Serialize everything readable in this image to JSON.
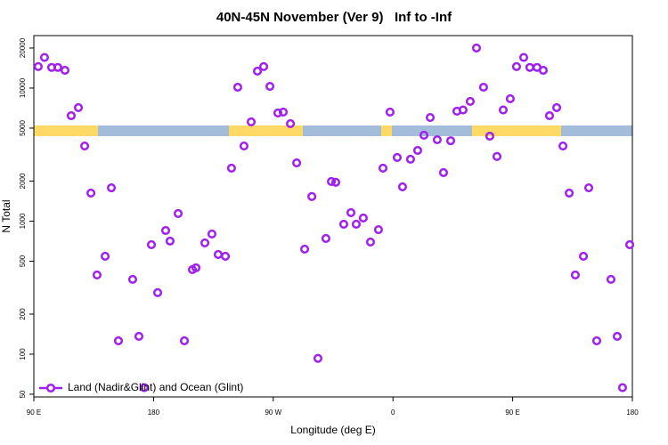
{
  "chart_data": {
    "type": "scatter",
    "log_y": true,
    "title": "40N-45N November (Ver 9)   Inf to -Inf",
    "xlabel": "Longitude (deg E)",
    "ylabel": "N Total",
    "xlim": [
      90,
      540
    ],
    "ylim": [
      47.7,
      24800
    ],
    "xticks": [
      {
        "value": 90,
        "label": "90 E"
      },
      180,
      {
        "value": 270,
        "label": "90 W"
      },
      {
        "value": 360,
        "label": "0"
      },
      {
        "value": 450,
        "label": "90 E"
      },
      {
        "value": 540,
        "label": "180"
      }
    ],
    "yticks": [
      50,
      100,
      200,
      500,
      1000,
      2000,
      5000,
      10000,
      20000
    ],
    "legend": "bottom-left",
    "series": [
      {
        "name": "Land (Nadir&Glint) and Ocean (Glint)",
        "color": "#a020f0",
        "x": [
          93.3,
          98,
          103.4,
          108,
          113.4,
          118.1,
          123.5,
          128.2,
          132.9,
          137.5,
          143.6,
          148.3,
          153.6,
          164.3,
          169,
          173,
          178.4,
          183.1,
          189.1,
          192.4,
          198.5,
          203.2,
          209.2,
          211.9,
          218.6,
          223.9,
          228.6,
          234,
          238.6,
          243.3,
          248,
          253.4,
          258.1,
          262.8,
          267.5,
          273.5,
          277.5,
          282.9,
          287.6,
          293.6,
          299,
          303.6,
          309.6,
          313.7,
          317,
          323,
          328.4,
          332.4,
          337.7,
          343.1,
          349.1,
          352.5,
          357.8,
          363.2,
          367.2,
          373.2,
          378.6,
          383.3,
          388,
          393.3,
          398,
          403.4,
          408.1,
          412.7,
          418.1,
          422.8,
          428.1,
          432.8,
          438.2,
          442.9,
          448.2,
          452.9,
          458.3,
          462.9,
          468.3,
          473,
          477.7,
          483.1,
          487.8,
          492.5,
          497.1,
          503.2,
          507.2,
          513.2,
          523.9,
          528.6,
          532.6,
          538
        ],
        "values": [
          14500,
          17000,
          14300,
          14300,
          13600,
          6200,
          7130,
          3670,
          1625,
          394,
          544,
          1780,
          126,
          365,
          136,
          56,
          665,
          290,
          850,
          708,
          1140,
          126,
          432,
          446,
          686,
          800,
          561,
          544,
          2500,
          10150,
          3670,
          5570,
          13400,
          14500,
          10300,
          6500,
          6600,
          5400,
          2740,
          616,
          1530,
          93,
          741,
          1985,
          1960,
          948,
          1158,
          948,
          1055,
          697,
          863,
          2500,
          6600,
          3010,
          1810,
          2920,
          3400,
          4420,
          6010,
          4090,
          2315,
          4020,
          6700,
          6850,
          7940,
          20000,
          10150,
          4350,
          3060,
          6850,
          8310,
          14500,
          17000,
          14300,
          14300,
          13600,
          6200,
          7130,
          3670,
          1625,
          394,
          544,
          1780,
          126,
          365,
          136,
          56,
          665
        ]
      }
    ]
  }
}
